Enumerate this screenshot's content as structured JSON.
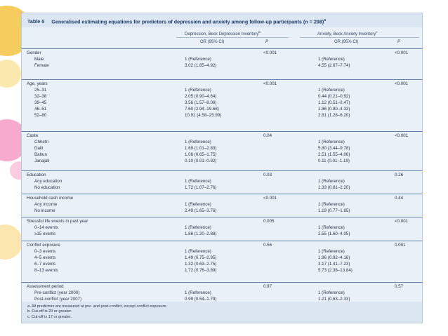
{
  "table": {
    "label": "Table 5",
    "title": "Generalised estimating equations for predictors of depression and anxiety among follow-up participants (n = 298)",
    "title_sup": "a",
    "headers": {
      "dep_group": "Depression, Beck Depression Inventory",
      "dep_sup": "b",
      "anx_group": "Anxiety, Beck Anxiety Inventory",
      "anx_sup": "c",
      "or_ci": "OR (95% CI)",
      "p": "P"
    },
    "groups": [
      {
        "label": "Gender",
        "p_dep": "<0.001",
        "p_anx": "<0.001",
        "rows": [
          {
            "label": "Male",
            "or_dep": "1 (Reference)",
            "or_anx": "1 (Reference)"
          },
          {
            "label": "Female",
            "or_dep": "3.02 (1.85–4.92)",
            "or_anx": "4.55 (2.67–7.74)"
          }
        ]
      },
      {
        "label": "Age, years",
        "p_dep": "<0.001",
        "p_anx": "<0.001",
        "rows": [
          {
            "label": "25–31",
            "or_dep": "1 (Reference)",
            "or_anx": "1 (Reference)"
          },
          {
            "label": "32–38",
            "or_dep": "2.05 (0.90–4.64)",
            "or_anx": "0.44 (0.21–0.92)"
          },
          {
            "label": "39–45",
            "or_dep": "3.56 (1.57–8.06)",
            "or_anx": "1.12 (0.51–2.47)"
          },
          {
            "label": "46–51",
            "or_dep": "7.60 (2.94–19.68)",
            "or_anx": "1.86 (0.80–4.33)"
          },
          {
            "label": "52–80",
            "or_dep": "10.91 (4.58–25.99)",
            "or_anx": "2.81 (1.28–6.20)"
          }
        ]
      },
      {
        "label": "Caste",
        "p_dep": "0.04",
        "p_anx": "<0.001",
        "rows": [
          {
            "label": "Chhetri",
            "or_dep": "1 (Reference)",
            "or_anx": "1 (Reference)"
          },
          {
            "label": "Dalit",
            "or_dep": "1.69 (1.01–2.83)",
            "or_anx": "5.80 (3.44–9.78)"
          },
          {
            "label": "Bahun",
            "or_dep": "1.06 (0.65–1.75)",
            "or_anx": "2.51 (1.55–4.06)"
          },
          {
            "label": "Janajati",
            "or_dep": "0.10 (0.01–0.92)",
            "or_anx": "0.11 (0.01–1.19)"
          }
        ]
      },
      {
        "label": "Education",
        "p_dep": "0.03",
        "p_anx": "0.26",
        "rows": [
          {
            "label": "Any education",
            "or_dep": "1 (Reference)",
            "or_anx": "1 (Reference)"
          },
          {
            "label": "No education",
            "or_dep": "1.72 (1.07–2.76)",
            "or_anx": "1.33 (0.81–2.20)"
          }
        ]
      },
      {
        "label": "Household cash income",
        "p_dep": "<0.001",
        "p_anx": "0.44",
        "rows": [
          {
            "label": "Any income",
            "or_dep": "1 (Reference)",
            "or_anx": "1 (Reference)"
          },
          {
            "label": "No income",
            "or_dep": "2.49 (1.65–3.76)",
            "or_anx": "1.19 (0.77–1.85)"
          }
        ]
      },
      {
        "label": "Stressful life events in past year",
        "p_dep": "0.005",
        "p_anx": "<0.001",
        "rows": [
          {
            "label": "0–14 events",
            "or_dep": "1 (Reference)",
            "or_anx": "1 (Reference)"
          },
          {
            "label": "≥15 events",
            "or_dep": "1.86 (1.20–2.88)",
            "or_anx": "2.55 (1.60–4.05)"
          }
        ]
      },
      {
        "label": "Conflict exposure",
        "p_dep": "0.56",
        "p_anx": "0.001",
        "rows": [
          {
            "label": "0–3 events",
            "or_dep": "1 (Reference)",
            "or_anx": "1 (Reference)"
          },
          {
            "label": "4–5 events",
            "or_dep": "1.49 (0.75–2.95)",
            "or_anx": "1.96 (0.92–4.16)"
          },
          {
            "label": "6–7 events",
            "or_dep": "1.32 (0.63–2.75)",
            "or_anx": "3.17 (1.41–7.23)"
          },
          {
            "label": "8–13 events",
            "or_dep": "1.72 (0.76–3.89)",
            "or_anx": "5.73 (2.38–13.84)"
          }
        ]
      },
      {
        "label": "Assessment period",
        "p_dep": "0.97",
        "p_anx": "0.57",
        "rows": [
          {
            "label": "Pre-conflict (year 2000)",
            "or_dep": "1 (Reference)",
            "or_anx": "1 (Reference)"
          },
          {
            "label": "Post-conflict (year 2007)",
            "or_dep": "0.99 (0.54–1.79)",
            "or_anx": "1.21 (0.63–2.33)"
          }
        ]
      }
    ],
    "notes": [
      "a. All predictors are measured at pre- and post-conflict, except conflict exposure.",
      "b. Cut-off is 20 or greater.",
      "c. Cut-off is 17 or greater."
    ]
  },
  "colors": {
    "title_bg": "#dce6f3",
    "table_bg": "#eaf0f8",
    "title_text": "#1f3f6b"
  }
}
